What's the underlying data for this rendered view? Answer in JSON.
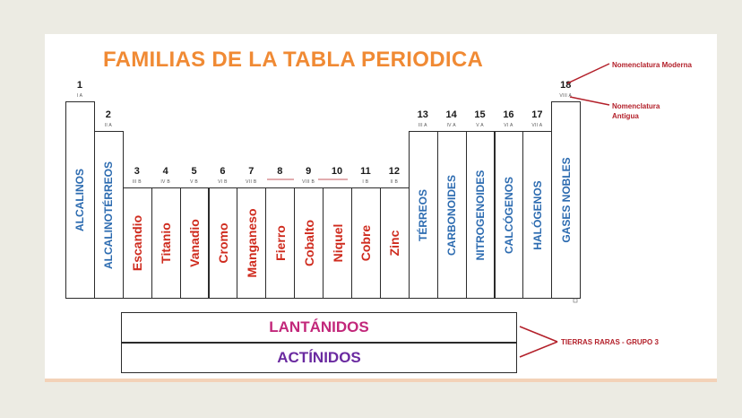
{
  "title": "FAMILIAS DE LA TABLA PERIODICA",
  "annotations": {
    "moderna": "Nomenclatura Moderna",
    "antigua_1": "Nomenclatura",
    "antigua_2": "Antigua",
    "tierras_raras": "TIERRAS RARAS  - GRUPO 3"
  },
  "groups": [
    {
      "num": "1",
      "old": "I A",
      "name": "ALCALINOS"
    },
    {
      "num": "2",
      "old": "II A",
      "name": "ALCALINOTÉRREOS"
    },
    {
      "num": "3",
      "old": "III B",
      "name": "Escandio"
    },
    {
      "num": "4",
      "old": "IV B",
      "name": "Titanio"
    },
    {
      "num": "5",
      "old": "V B",
      "name": "Vanadio"
    },
    {
      "num": "6",
      "old": "VI B",
      "name": "Cromo"
    },
    {
      "num": "7",
      "old": "VII B",
      "name": "Manganeso"
    },
    {
      "num": "8",
      "old": "",
      "name": "Fierro"
    },
    {
      "num": "9",
      "old": "VIII B",
      "name": "Cobalto"
    },
    {
      "num": "10",
      "old": "",
      "name": "Niquel"
    },
    {
      "num": "11",
      "old": "I B",
      "name": "Cobre"
    },
    {
      "num": "12",
      "old": "II B",
      "name": "Zinc"
    },
    {
      "num": "13",
      "old": "III A",
      "name": "TÉRREOS"
    },
    {
      "num": "14",
      "old": "IV A",
      "name": "CARBONOIDES"
    },
    {
      "num": "15",
      "old": "V A",
      "name": "NITROGENOIDES"
    },
    {
      "num": "16",
      "old": "VI A",
      "name": "CALCÓGENOS"
    },
    {
      "num": "17",
      "old": "VII A",
      "name": "HALÓGENOS"
    },
    {
      "num": "18",
      "old": "VIII A",
      "name": "GASES NOBLES"
    }
  ],
  "series": [
    {
      "name": "LANTÁNIDOS",
      "color": "#c2277a"
    },
    {
      "name": "ACTÍNIDOS",
      "color": "#6a2aa0"
    }
  ],
  "colors": {
    "title": "#f08a34",
    "main_group_text": "#2c6bb0",
    "transition_text": "#cf2b1e",
    "annotation": "#b3202a"
  }
}
